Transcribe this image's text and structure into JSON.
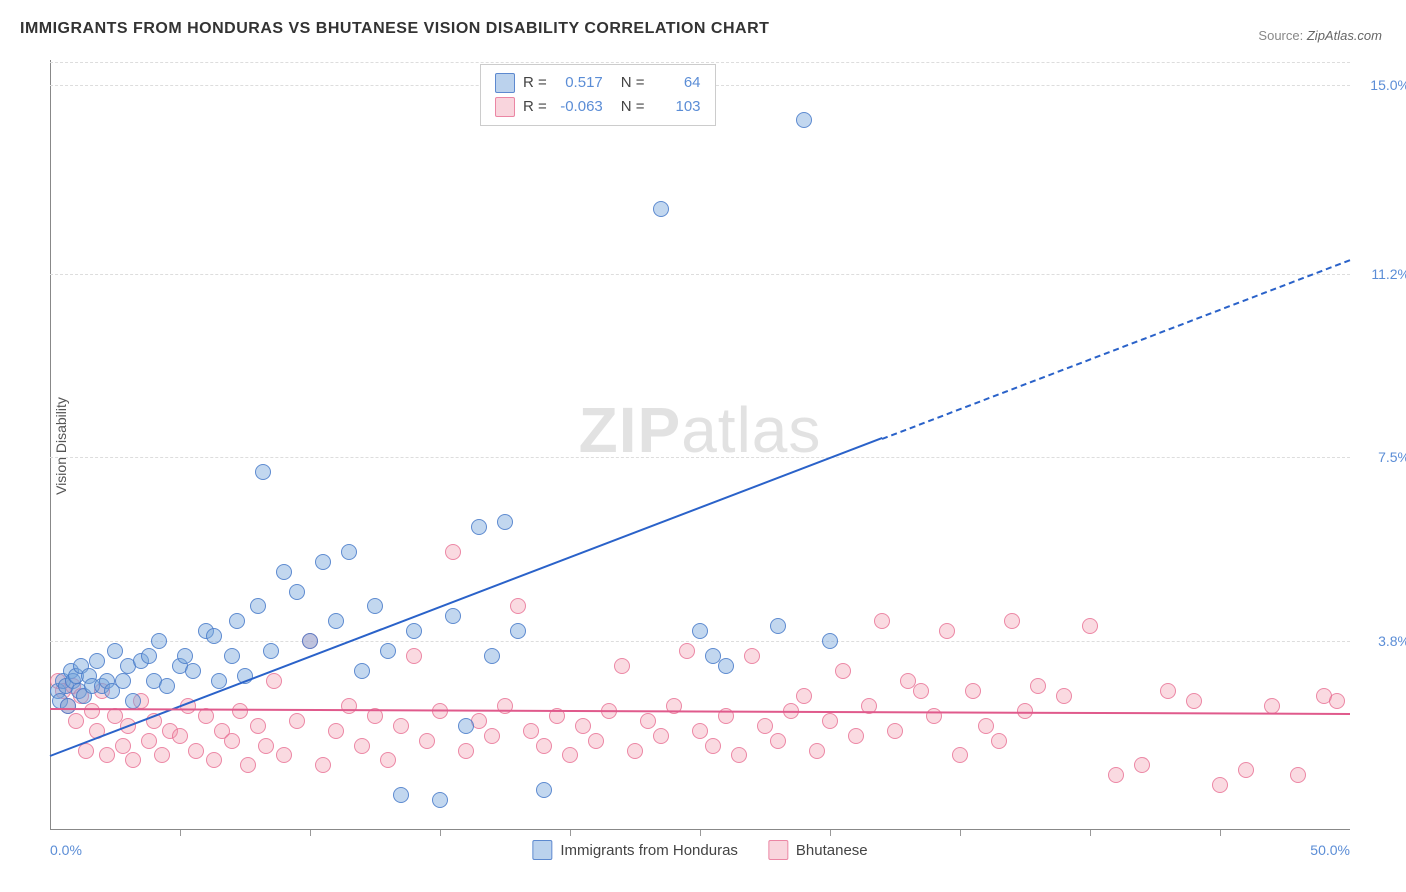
{
  "title": "IMMIGRANTS FROM HONDURAS VS BHUTANESE VISION DISABILITY CORRELATION CHART",
  "source_label": "Source:",
  "source_value": "ZipAtlas.com",
  "y_axis_label": "Vision Disability",
  "watermark_bold": "ZIP",
  "watermark_light": "atlas",
  "chart": {
    "type": "scatter",
    "xlim": [
      0,
      50
    ],
    "ylim": [
      0,
      15.5
    ],
    "x_tick_labels": [
      "0.0%",
      "50.0%"
    ],
    "x_tick_positions": [
      0,
      50
    ],
    "y_tick_labels": [
      "3.8%",
      "7.5%",
      "11.2%",
      "15.0%"
    ],
    "y_tick_positions": [
      3.8,
      7.5,
      11.2,
      15.0
    ],
    "x_minor_ticks": [
      5,
      10,
      15,
      20,
      25,
      30,
      35,
      40,
      45
    ],
    "background_color": "#ffffff",
    "grid_color": "#dddddd",
    "series": [
      {
        "name": "Immigrants from Honduras",
        "color_fill": "rgba(120,166,220,0.45)",
        "color_stroke": "rgba(70,120,200,0.8)",
        "R": "0.517",
        "N": "64",
        "trend": {
          "x1": 0,
          "y1": 1.5,
          "x2": 32,
          "y2": 7.9,
          "x2_dash": 50,
          "y2_dash": 11.5,
          "color": "#2a62c9"
        },
        "points": [
          [
            0.3,
            2.8
          ],
          [
            0.4,
            2.6
          ],
          [
            0.5,
            3.0
          ],
          [
            0.6,
            2.9
          ],
          [
            0.7,
            2.5
          ],
          [
            0.8,
            3.2
          ],
          [
            0.9,
            3.0
          ],
          [
            1.0,
            3.1
          ],
          [
            1.1,
            2.8
          ],
          [
            1.2,
            3.3
          ],
          [
            1.3,
            2.7
          ],
          [
            1.5,
            3.1
          ],
          [
            1.6,
            2.9
          ],
          [
            1.8,
            3.4
          ],
          [
            2.0,
            2.9
          ],
          [
            2.2,
            3.0
          ],
          [
            2.4,
            2.8
          ],
          [
            2.5,
            3.6
          ],
          [
            2.8,
            3.0
          ],
          [
            3.0,
            3.3
          ],
          [
            3.2,
            2.6
          ],
          [
            3.5,
            3.4
          ],
          [
            3.8,
            3.5
          ],
          [
            4.0,
            3.0
          ],
          [
            4.2,
            3.8
          ],
          [
            4.5,
            2.9
          ],
          [
            5.0,
            3.3
          ],
          [
            5.2,
            3.5
          ],
          [
            5.5,
            3.2
          ],
          [
            6.0,
            4.0
          ],
          [
            6.3,
            3.9
          ],
          [
            6.5,
            3.0
          ],
          [
            7.0,
            3.5
          ],
          [
            7.2,
            4.2
          ],
          [
            7.5,
            3.1
          ],
          [
            8.0,
            4.5
          ],
          [
            8.2,
            7.2
          ],
          [
            8.5,
            3.6
          ],
          [
            9.0,
            5.2
          ],
          [
            9.5,
            4.8
          ],
          [
            10.0,
            3.8
          ],
          [
            10.5,
            5.4
          ],
          [
            11.0,
            4.2
          ],
          [
            11.5,
            5.6
          ],
          [
            12.0,
            3.2
          ],
          [
            12.5,
            4.5
          ],
          [
            13.0,
            3.6
          ],
          [
            13.5,
            0.7
          ],
          [
            14.0,
            4.0
          ],
          [
            15.0,
            0.6
          ],
          [
            15.5,
            4.3
          ],
          [
            16.0,
            2.1
          ],
          [
            16.5,
            6.1
          ],
          [
            17.0,
            3.5
          ],
          [
            17.5,
            6.2
          ],
          [
            18.0,
            4.0
          ],
          [
            19.0,
            0.8
          ],
          [
            23.5,
            12.5
          ],
          [
            25.0,
            4.0
          ],
          [
            25.5,
            3.5
          ],
          [
            26.0,
            3.3
          ],
          [
            28.0,
            4.1
          ],
          [
            29.0,
            14.3
          ],
          [
            30.0,
            3.8
          ]
        ]
      },
      {
        "name": "Bhutanese",
        "color_fill": "rgba(240,150,170,0.35)",
        "color_stroke": "rgba(230,100,140,0.7)",
        "R": "-0.063",
        "N": "103",
        "trend": {
          "x1": 0,
          "y1": 2.45,
          "x2": 50,
          "y2": 2.35,
          "color": "#e05a8c"
        },
        "points": [
          [
            0.3,
            3.0
          ],
          [
            0.5,
            2.8
          ],
          [
            0.7,
            2.5
          ],
          [
            0.9,
            2.9
          ],
          [
            1.0,
            2.2
          ],
          [
            1.2,
            2.7
          ],
          [
            1.4,
            1.6
          ],
          [
            1.6,
            2.4
          ],
          [
            1.8,
            2.0
          ],
          [
            2.0,
            2.8
          ],
          [
            2.2,
            1.5
          ],
          [
            2.5,
            2.3
          ],
          [
            2.8,
            1.7
          ],
          [
            3.0,
            2.1
          ],
          [
            3.2,
            1.4
          ],
          [
            3.5,
            2.6
          ],
          [
            3.8,
            1.8
          ],
          [
            4.0,
            2.2
          ],
          [
            4.3,
            1.5
          ],
          [
            4.6,
            2.0
          ],
          [
            5.0,
            1.9
          ],
          [
            5.3,
            2.5
          ],
          [
            5.6,
            1.6
          ],
          [
            6.0,
            2.3
          ],
          [
            6.3,
            1.4
          ],
          [
            6.6,
            2.0
          ],
          [
            7.0,
            1.8
          ],
          [
            7.3,
            2.4
          ],
          [
            7.6,
            1.3
          ],
          [
            8.0,
            2.1
          ],
          [
            8.3,
            1.7
          ],
          [
            8.6,
            3.0
          ],
          [
            9.0,
            1.5
          ],
          [
            9.5,
            2.2
          ],
          [
            10.0,
            3.8
          ],
          [
            10.5,
            1.3
          ],
          [
            11.0,
            2.0
          ],
          [
            11.5,
            2.5
          ],
          [
            12.0,
            1.7
          ],
          [
            12.5,
            2.3
          ],
          [
            13.0,
            1.4
          ],
          [
            13.5,
            2.1
          ],
          [
            14.0,
            3.5
          ],
          [
            14.5,
            1.8
          ],
          [
            15.0,
            2.4
          ],
          [
            15.5,
            5.6
          ],
          [
            16.0,
            1.6
          ],
          [
            16.5,
            2.2
          ],
          [
            17.0,
            1.9
          ],
          [
            17.5,
            2.5
          ],
          [
            18.0,
            4.5
          ],
          [
            18.5,
            2.0
          ],
          [
            19.0,
            1.7
          ],
          [
            19.5,
            2.3
          ],
          [
            20.0,
            1.5
          ],
          [
            20.5,
            2.1
          ],
          [
            21.0,
            1.8
          ],
          [
            21.5,
            2.4
          ],
          [
            22.0,
            3.3
          ],
          [
            22.5,
            1.6
          ],
          [
            23.0,
            2.2
          ],
          [
            23.5,
            1.9
          ],
          [
            24.0,
            2.5
          ],
          [
            24.5,
            3.6
          ],
          [
            25.0,
            2.0
          ],
          [
            25.5,
            1.7
          ],
          [
            26.0,
            2.3
          ],
          [
            26.5,
            1.5
          ],
          [
            27.0,
            3.5
          ],
          [
            27.5,
            2.1
          ],
          [
            28.0,
            1.8
          ],
          [
            28.5,
            2.4
          ],
          [
            29.0,
            2.7
          ],
          [
            29.5,
            1.6
          ],
          [
            30.0,
            2.2
          ],
          [
            30.5,
            3.2
          ],
          [
            31.0,
            1.9
          ],
          [
            31.5,
            2.5
          ],
          [
            32.0,
            4.2
          ],
          [
            32.5,
            2.0
          ],
          [
            33.0,
            3.0
          ],
          [
            33.5,
            2.8
          ],
          [
            34.0,
            2.3
          ],
          [
            34.5,
            4.0
          ],
          [
            35.0,
            1.5
          ],
          [
            35.5,
            2.8
          ],
          [
            36.0,
            2.1
          ],
          [
            36.5,
            1.8
          ],
          [
            37.0,
            4.2
          ],
          [
            37.5,
            2.4
          ],
          [
            38.0,
            2.9
          ],
          [
            39.0,
            2.7
          ],
          [
            40.0,
            4.1
          ],
          [
            41.0,
            1.1
          ],
          [
            42.0,
            1.3
          ],
          [
            43.0,
            2.8
          ],
          [
            44.0,
            2.6
          ],
          [
            45.0,
            0.9
          ],
          [
            46.0,
            1.2
          ],
          [
            47.0,
            2.5
          ],
          [
            48.0,
            1.1
          ],
          [
            49.0,
            2.7
          ],
          [
            49.5,
            2.6
          ]
        ]
      }
    ]
  },
  "legend_inline": {
    "R_label": "R =",
    "N_label": "N ="
  },
  "bottom_legend": [
    "Immigrants from Honduras",
    "Bhutanese"
  ]
}
